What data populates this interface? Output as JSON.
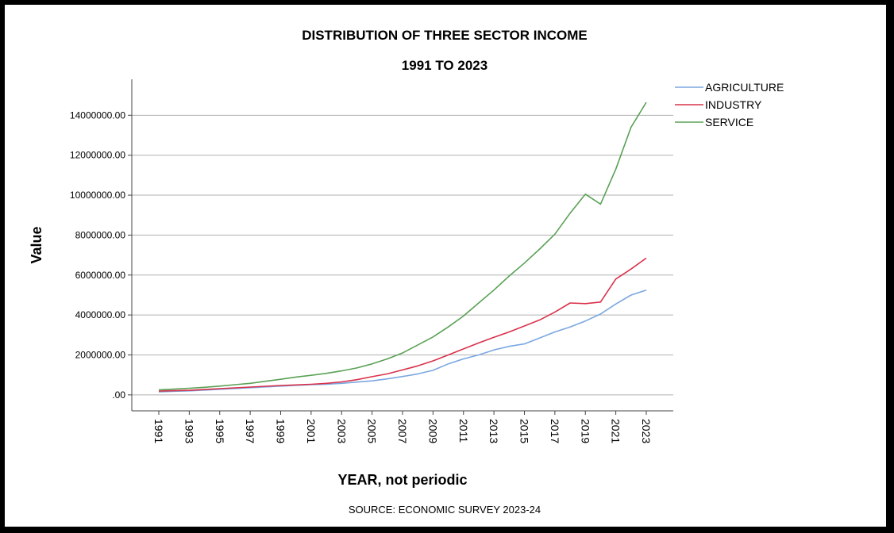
{
  "chart_data": {
    "type": "line",
    "title": "DISTRIBUTION OF THREE SECTOR INCOME",
    "subtitle": "1991 TO 2023",
    "xlabel": "YEAR, not periodic",
    "ylabel": "Value",
    "source": "SOURCE: ECONOMIC SURVEY 2023-24",
    "ylim": [
      -800000,
      15800000
    ],
    "yticks": [
      0,
      2000000,
      4000000,
      6000000,
      8000000,
      10000000,
      12000000,
      14000000
    ],
    "ytick_labels": [
      ".00",
      "2000000.00",
      "4000000.00",
      "6000000.00",
      "8000000.00",
      "10000000.00",
      "12000000.00",
      "14000000.00"
    ],
    "xticks": [
      1991,
      1993,
      1995,
      1997,
      1999,
      2001,
      2003,
      2005,
      2007,
      2009,
      2011,
      2013,
      2015,
      2017,
      2019,
      2021,
      2023
    ],
    "grid": "horizontal",
    "legend_position": "top-right",
    "x": [
      1991,
      1992,
      1993,
      1994,
      1995,
      1996,
      1997,
      1998,
      1999,
      2000,
      2001,
      2002,
      2003,
      2004,
      2005,
      2006,
      2007,
      2008,
      2009,
      2010,
      2011,
      2012,
      2013,
      2014,
      2015,
      2016,
      2017,
      2018,
      2019,
      2020,
      2021,
      2022,
      2023
    ],
    "series": [
      {
        "name": "AGRICULTURE",
        "color": "#7ba7e1",
        "values": [
          150000,
          180000,
          200000,
          240000,
          280000,
          320000,
          360000,
          400000,
          440000,
          480000,
          510000,
          530000,
          580000,
          640000,
          700000,
          800000,
          920000,
          1050000,
          1230000,
          1550000,
          1800000,
          2000000,
          2250000,
          2430000,
          2550000,
          2850000,
          3150000,
          3400000,
          3700000,
          4050000,
          4550000,
          5000000,
          5250000
        ]
      },
      {
        "name": "INDUSTRY",
        "color": "#d9324b",
        "values": [
          190000,
          210000,
          230000,
          270000,
          310000,
          350000,
          390000,
          430000,
          470000,
          500000,
          530000,
          580000,
          650000,
          760000,
          910000,
          1050000,
          1250000,
          1450000,
          1700000,
          2000000,
          2300000,
          2600000,
          2880000,
          3150000,
          3450000,
          3750000,
          4150000,
          4600000,
          4570000,
          4650000,
          5800000,
          6300000,
          6850000
        ]
      },
      {
        "name": "SERVICE",
        "color": "#5aa155",
        "values": [
          250000,
          290000,
          330000,
          380000,
          440000,
          510000,
          580000,
          680000,
          780000,
          890000,
          980000,
          1080000,
          1200000,
          1350000,
          1550000,
          1800000,
          2100000,
          2500000,
          2900000,
          3400000,
          3950000,
          4600000,
          5250000,
          5950000,
          6600000,
          7300000,
          8050000,
          9100000,
          10050000,
          9550000,
          11300000,
          13400000,
          14650000
        ]
      }
    ]
  }
}
